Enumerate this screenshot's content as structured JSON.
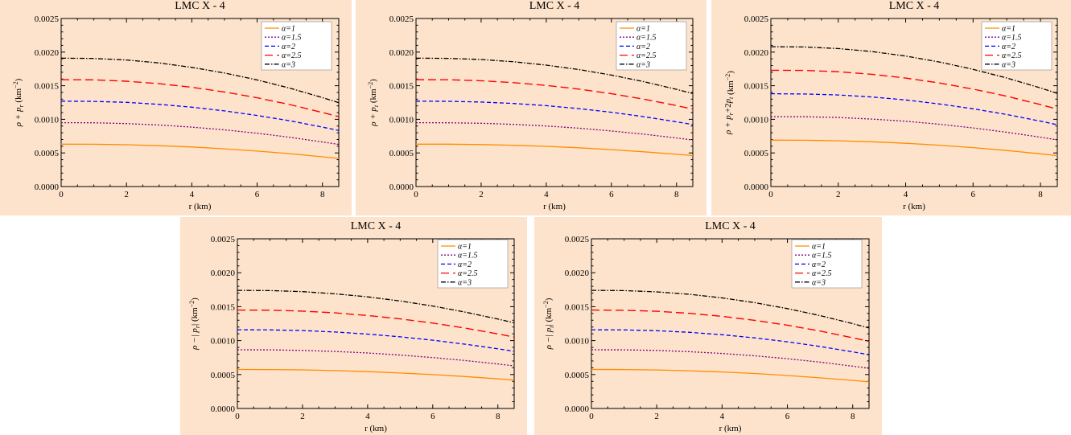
{
  "colors": {
    "panel_background": "#fde3cb",
    "alpha_1": "#ff8c00",
    "alpha_1_5": "#800080",
    "alpha_2": "#0000ff",
    "alpha_2_5": "#ff0000",
    "alpha_3": "#000000"
  },
  "chart_data": [
    {
      "type": "line",
      "title": "LMC X - 4",
      "xlabel": "r (km)",
      "ylabel": "ρ + p_r (km⁻²)",
      "ylabel_parts": {
        "base": "ρ +",
        "p": "p",
        "sub": "r",
        "unit": "(km",
        "sup": "−2",
        "close": ")"
      },
      "xlim": [
        0,
        8.5
      ],
      "ylim": [
        0,
        0.0025
      ],
      "xticks": [
        "0",
        "2",
        "4",
        "6",
        "8"
      ],
      "yticks": [
        "0.0000",
        "0.0005",
        "0.0010",
        "0.0015",
        "0.0020",
        "0.0025"
      ],
      "legend_position": "top-right",
      "x": [
        0,
        1,
        2,
        3,
        4,
        5,
        6,
        7,
        8,
        8.5
      ],
      "series": [
        {
          "name": "α=1",
          "style": "solid",
          "values": [
            0.00063,
            0.000629,
            0.000622,
            0.000608,
            0.000588,
            0.000561,
            0.000528,
            0.000489,
            0.000442,
            0.000418
          ]
        },
        {
          "name": "α=1.5",
          "style": "dotted",
          "values": [
            0.00095,
            0.000948,
            0.000937,
            0.000915,
            0.000884,
            0.000843,
            0.000793,
            0.000733,
            0.000663,
            0.000627
          ]
        },
        {
          "name": "α=2",
          "style": "dashed",
          "values": [
            0.00127,
            0.001267,
            0.001252,
            0.001223,
            0.001181,
            0.001126,
            0.001058,
            0.000978,
            0.000884,
            0.000835
          ]
        },
        {
          "name": "α=2.5",
          "style": "longdash",
          "values": [
            0.00159,
            0.001587,
            0.001567,
            0.00153,
            0.001477,
            0.001407,
            0.001321,
            0.00122,
            0.001102,
            0.00104
          ]
        },
        {
          "name": "α=3",
          "style": "dashdot",
          "values": [
            0.00191,
            0.001906,
            0.001883,
            0.001838,
            0.001773,
            0.001689,
            0.001586,
            0.001464,
            0.001323,
            0.001248
          ]
        }
      ]
    },
    {
      "type": "line",
      "title": "LMC X - 4",
      "xlabel": "r (km)",
      "ylabel": "ρ + p_t (km⁻²)",
      "ylabel_parts": {
        "base": "ρ +",
        "p": "p",
        "sub": "t",
        "unit": "(km",
        "sup": "−2",
        "close": ")"
      },
      "xlim": [
        0,
        8.5
      ],
      "ylim": [
        0,
        0.0025
      ],
      "xticks": [
        "0",
        "2",
        "4",
        "6",
        "8"
      ],
      "yticks": [
        "0.0000",
        "0.0005",
        "0.0010",
        "0.0015",
        "0.0020",
        "0.0025"
      ],
      "legend_position": "top-right",
      "x": [
        0,
        1,
        2,
        3,
        4,
        5,
        6,
        7,
        8,
        8.5
      ],
      "series": [
        {
          "name": "α=1",
          "style": "solid",
          "values": [
            0.00063,
            0.00063,
            0.000625,
            0.000614,
            0.000598,
            0.000576,
            0.000549,
            0.000517,
            0.00048,
            0.00046
          ]
        },
        {
          "name": "α=1.5",
          "style": "dotted",
          "values": [
            0.00095,
            0.000949,
            0.000941,
            0.000925,
            0.000901,
            0.000868,
            0.000827,
            0.000779,
            0.000723,
            0.000693
          ]
        },
        {
          "name": "α=2",
          "style": "dashed",
          "values": [
            0.00127,
            0.001268,
            0.001257,
            0.001236,
            0.001203,
            0.001159,
            0.001105,
            0.001039,
            0.000963,
            0.000922
          ]
        },
        {
          "name": "α=2.5",
          "style": "longdash",
          "values": [
            0.00159,
            0.001588,
            0.001574,
            0.001546,
            0.001505,
            0.00145,
            0.001381,
            0.001299,
            0.001204,
            0.001152
          ]
        },
        {
          "name": "α=3",
          "style": "dashdot",
          "values": [
            0.00191,
            0.001907,
            0.00189,
            0.001856,
            0.001806,
            0.00174,
            0.001658,
            0.00156,
            0.001446,
            0.001384
          ]
        }
      ]
    },
    {
      "type": "line",
      "title": "LMC X - 4",
      "xlabel": "r (km)",
      "ylabel": "ρ + p_r + 2p_t (km⁻²)",
      "ylabel_parts": {
        "base": "ρ +",
        "p": "p",
        "sub": "r",
        "mid": "+2",
        "p2": "p",
        "sub2": "t",
        "unit": "(km",
        "sup": "−2",
        "close": ")"
      },
      "xlim": [
        0,
        8.5
      ],
      "ylim": [
        0,
        0.0025
      ],
      "xticks": [
        "0",
        "2",
        "4",
        "6",
        "8"
      ],
      "yticks": [
        "0.0000",
        "0.0005",
        "0.0010",
        "0.0015",
        "0.0020",
        "0.0025"
      ],
      "legend_position": "top-right",
      "x": [
        0,
        1,
        2,
        3,
        4,
        5,
        6,
        7,
        8,
        8.5
      ],
      "series": [
        {
          "name": "α=1",
          "style": "solid",
          "values": [
            0.00069,
            0.000689,
            0.000681,
            0.000666,
            0.000644,
            0.000615,
            0.000579,
            0.000536,
            0.000487,
            0.00046
          ]
        },
        {
          "name": "α=1.5",
          "style": "dotted",
          "values": [
            0.00104,
            0.001038,
            0.001027,
            0.001004,
            0.000971,
            0.000927,
            0.000872,
            0.000808,
            0.000734,
            0.000694
          ]
        },
        {
          "name": "α=2",
          "style": "dashed",
          "values": [
            0.00138,
            0.001377,
            0.001362,
            0.001332,
            0.001288,
            0.001229,
            0.001157,
            0.001072,
            0.000973,
            0.00092
          ]
        },
        {
          "name": "α=2.5",
          "style": "longdash",
          "values": [
            0.00173,
            0.001727,
            0.001708,
            0.00167,
            0.001614,
            0.001541,
            0.00145,
            0.001343,
            0.001219,
            0.001152
          ]
        },
        {
          "name": "α=3",
          "style": "dashdot",
          "values": [
            0.00208,
            0.002076,
            0.002053,
            0.002008,
            0.001941,
            0.001853,
            0.001744,
            0.001615,
            0.001466,
            0.001386
          ]
        }
      ]
    },
    {
      "type": "line",
      "title": "LMC X - 4",
      "xlabel": "r (km)",
      "ylabel": "ρ − |p_r| (km⁻²)",
      "ylabel_parts": {
        "base": "ρ −|",
        "p": "p",
        "sub": "r",
        "mid2": "|",
        "unit": "(km",
        "sup": "−2",
        "close": ")"
      },
      "xlim": [
        0,
        8.5
      ],
      "ylim": [
        0,
        0.0025
      ],
      "xticks": [
        "0",
        "2",
        "4",
        "6",
        "8"
      ],
      "yticks": [
        "0.0000",
        "0.0005",
        "0.0010",
        "0.0015",
        "0.0020",
        "0.0025"
      ],
      "legend_position": "top-right",
      "x": [
        0,
        1,
        2,
        3,
        4,
        5,
        6,
        7,
        8,
        8.5
      ],
      "series": [
        {
          "name": "α=1",
          "style": "solid",
          "values": [
            0.000575,
            0.000574,
            0.000569,
            0.000558,
            0.000543,
            0.000523,
            0.000499,
            0.00047,
            0.000436,
            0.000418
          ]
        },
        {
          "name": "α=1.5",
          "style": "dotted",
          "values": [
            0.000865,
            0.000864,
            0.000856,
            0.00084,
            0.000817,
            0.000787,
            0.00075,
            0.000706,
            0.000655,
            0.000628
          ]
        },
        {
          "name": "α=2",
          "style": "dashed",
          "values": [
            0.00116,
            0.001158,
            0.001148,
            0.001127,
            0.001096,
            0.001056,
            0.001006,
            0.000947,
            0.000879,
            0.000842
          ]
        },
        {
          "name": "α=2.5",
          "style": "longdash",
          "values": [
            0.00145,
            0.001448,
            0.001435,
            0.001409,
            0.00137,
            0.00132,
            0.001258,
            0.001184,
            0.001098,
            0.001052
          ]
        },
        {
          "name": "α=3",
          "style": "dashdot",
          "values": [
            0.00174,
            0.001737,
            0.001721,
            0.00169,
            0.001644,
            0.001584,
            0.001509,
            0.00142,
            0.001317,
            0.001262
          ]
        }
      ]
    },
    {
      "type": "line",
      "title": "LMC X - 4",
      "xlabel": "r (km)",
      "ylabel": "ρ − |p_t| (km⁻²)",
      "ylabel_parts": {
        "base": "ρ −|",
        "p": "p",
        "sub": "t",
        "mid2": "|",
        "unit": "(km",
        "sup": "−2",
        "close": ")"
      },
      "xlim": [
        0,
        8.5
      ],
      "ylim": [
        0,
        0.0025
      ],
      "xticks": [
        "0",
        "2",
        "4",
        "6",
        "8"
      ],
      "yticks": [
        "0.0000",
        "0.0005",
        "0.0010",
        "0.0015",
        "0.0020",
        "0.0025"
      ],
      "legend_position": "top-right",
      "x": [
        0,
        1,
        2,
        3,
        4,
        5,
        6,
        7,
        8,
        8.5
      ],
      "series": [
        {
          "name": "α=1",
          "style": "solid",
          "values": [
            0.000575,
            0.000574,
            0.000568,
            0.000556,
            0.000538,
            0.000515,
            0.000486,
            0.000452,
            0.000413,
            0.000392
          ]
        },
        {
          "name": "α=1.5",
          "style": "dotted",
          "values": [
            0.000865,
            0.000864,
            0.000855,
            0.000837,
            0.000811,
            0.000776,
            0.000733,
            0.000682,
            0.000623,
            0.000591
          ]
        },
        {
          "name": "α=2",
          "style": "dashed",
          "values": [
            0.00116,
            0.001158,
            0.001146,
            0.001122,
            0.001087,
            0.00104,
            0.000982,
            0.000913,
            0.000834,
            0.000791
          ]
        },
        {
          "name": "α=2.5",
          "style": "longdash",
          "values": [
            0.00145,
            0.001447,
            0.001432,
            0.001402,
            0.001358,
            0.001299,
            0.001227,
            0.001141,
            0.001042,
            0.000988
          ]
        },
        {
          "name": "α=3",
          "style": "dashdot",
          "values": [
            0.00174,
            0.001737,
            0.001718,
            0.001682,
            0.001629,
            0.001559,
            0.001472,
            0.001369,
            0.00125,
            0.001186
          ]
        }
      ]
    }
  ]
}
